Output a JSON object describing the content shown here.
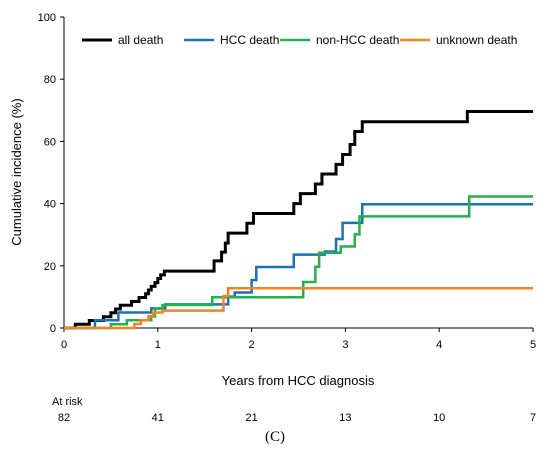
{
  "chart_data": {
    "type": "line",
    "xlabel": "Years from HCC diagnosis",
    "ylabel": "Cumulative incidence (%)",
    "xlim": [
      0,
      5
    ],
    "ylim": [
      0,
      100
    ],
    "x_ticks": [
      0,
      1,
      2,
      3,
      4,
      5
    ],
    "y_ticks": [
      0,
      20,
      40,
      60,
      80,
      100
    ],
    "grid": false,
    "legend_position": "top",
    "series": [
      {
        "name": "all death",
        "color": "#000000",
        "step": true,
        "points": [
          [
            0,
            0
          ],
          [
            0.12,
            0
          ],
          [
            0.12,
            1.2
          ],
          [
            0.27,
            1.2
          ],
          [
            0.27,
            2.4
          ],
          [
            0.42,
            2.4
          ],
          [
            0.42,
            3.6
          ],
          [
            0.5,
            3.6
          ],
          [
            0.5,
            4.9
          ],
          [
            0.55,
            4.9
          ],
          [
            0.55,
            6.1
          ],
          [
            0.6,
            6.1
          ],
          [
            0.6,
            7.3
          ],
          [
            0.72,
            7.3
          ],
          [
            0.72,
            8.5
          ],
          [
            0.8,
            8.5
          ],
          [
            0.8,
            9.8
          ],
          [
            0.87,
            9.8
          ],
          [
            0.87,
            11.0
          ],
          [
            0.9,
            11.0
          ],
          [
            0.9,
            12.2
          ],
          [
            0.93,
            12.2
          ],
          [
            0.93,
            13.4
          ],
          [
            0.97,
            13.4
          ],
          [
            0.97,
            14.6
          ],
          [
            1.0,
            14.6
          ],
          [
            1.0,
            15.9
          ],
          [
            1.03,
            15.9
          ],
          [
            1.03,
            17.1
          ],
          [
            1.07,
            17.1
          ],
          [
            1.07,
            18.3
          ],
          [
            1.6,
            18.3
          ],
          [
            1.6,
            21.6
          ],
          [
            1.68,
            21.6
          ],
          [
            1.68,
            24.4
          ],
          [
            1.72,
            24.4
          ],
          [
            1.72,
            27.3
          ],
          [
            1.75,
            27.3
          ],
          [
            1.75,
            30.5
          ],
          [
            1.95,
            30.5
          ],
          [
            1.95,
            33.7
          ],
          [
            2.02,
            33.7
          ],
          [
            2.02,
            36.8
          ],
          [
            2.45,
            36.8
          ],
          [
            2.45,
            40.0
          ],
          [
            2.52,
            40.0
          ],
          [
            2.52,
            43.2
          ],
          [
            2.68,
            43.2
          ],
          [
            2.68,
            46.3
          ],
          [
            2.75,
            46.3
          ],
          [
            2.75,
            49.5
          ],
          [
            2.9,
            49.5
          ],
          [
            2.9,
            52.6
          ],
          [
            2.97,
            52.6
          ],
          [
            2.97,
            55.8
          ],
          [
            3.05,
            55.8
          ],
          [
            3.05,
            59.0
          ],
          [
            3.1,
            59.0
          ],
          [
            3.1,
            63.2
          ],
          [
            3.18,
            63.2
          ],
          [
            3.18,
            66.3
          ],
          [
            4.3,
            66.3
          ],
          [
            4.3,
            69.6
          ],
          [
            5.0,
            69.6
          ]
        ]
      },
      {
        "name": "HCC death",
        "color": "#1a72b8",
        "step": true,
        "points": [
          [
            0,
            0
          ],
          [
            0.33,
            0
          ],
          [
            0.33,
            2.5
          ],
          [
            0.58,
            2.5
          ],
          [
            0.58,
            5.0
          ],
          [
            0.93,
            5.0
          ],
          [
            0.93,
            6.3
          ],
          [
            1.08,
            6.3
          ],
          [
            1.08,
            7.6
          ],
          [
            1.75,
            7.6
          ],
          [
            1.75,
            10.1
          ],
          [
            1.82,
            10.1
          ],
          [
            1.82,
            11.4
          ],
          [
            2.0,
            11.4
          ],
          [
            2.0,
            15.4
          ],
          [
            2.05,
            15.4
          ],
          [
            2.05,
            19.6
          ],
          [
            2.45,
            19.6
          ],
          [
            2.45,
            23.6
          ],
          [
            2.78,
            23.6
          ],
          [
            2.78,
            24.6
          ],
          [
            2.9,
            24.6
          ],
          [
            2.9,
            28.6
          ],
          [
            2.97,
            28.6
          ],
          [
            2.97,
            33.8
          ],
          [
            3.18,
            33.8
          ],
          [
            3.18,
            39.8
          ],
          [
            5.0,
            39.8
          ]
        ]
      },
      {
        "name": "non-HCC death",
        "color": "#22b14c",
        "step": true,
        "points": [
          [
            0,
            0
          ],
          [
            0.5,
            0
          ],
          [
            0.5,
            1.2
          ],
          [
            0.67,
            1.2
          ],
          [
            0.67,
            2.5
          ],
          [
            0.93,
            2.5
          ],
          [
            0.93,
            3.7
          ],
          [
            0.97,
            3.7
          ],
          [
            0.97,
            6.2
          ],
          [
            1.05,
            6.2
          ],
          [
            1.05,
            7.4
          ],
          [
            1.58,
            7.4
          ],
          [
            1.58,
            9.9
          ],
          [
            2.55,
            9.9
          ],
          [
            2.55,
            14.8
          ],
          [
            2.68,
            14.8
          ],
          [
            2.68,
            19.7
          ],
          [
            2.72,
            19.7
          ],
          [
            2.72,
            24.2
          ],
          [
            2.95,
            24.2
          ],
          [
            2.95,
            26.2
          ],
          [
            3.1,
            26.2
          ],
          [
            3.1,
            30.1
          ],
          [
            3.15,
            30.1
          ],
          [
            3.15,
            35.9
          ],
          [
            4.32,
            35.9
          ],
          [
            4.32,
            42.3
          ],
          [
            5.0,
            42.3
          ]
        ]
      },
      {
        "name": "unknown death",
        "color": "#f5821f",
        "step": true,
        "points": [
          [
            0,
            0
          ],
          [
            0.75,
            0
          ],
          [
            0.75,
            1.3
          ],
          [
            0.82,
            1.3
          ],
          [
            0.82,
            2.5
          ],
          [
            0.9,
            2.5
          ],
          [
            0.9,
            3.8
          ],
          [
            0.95,
            3.8
          ],
          [
            0.95,
            5.0
          ],
          [
            1.05,
            5.0
          ],
          [
            1.05,
            5.6
          ],
          [
            1.7,
            5.6
          ],
          [
            1.7,
            10.3
          ],
          [
            1.75,
            10.3
          ],
          [
            1.75,
            12.8
          ],
          [
            5.0,
            12.8
          ]
        ]
      }
    ],
    "at_risk": {
      "label": "At risk",
      "values": [
        "82",
        "41",
        "21",
        "13",
        "10",
        "7"
      ]
    },
    "panel_label": "(C)"
  }
}
